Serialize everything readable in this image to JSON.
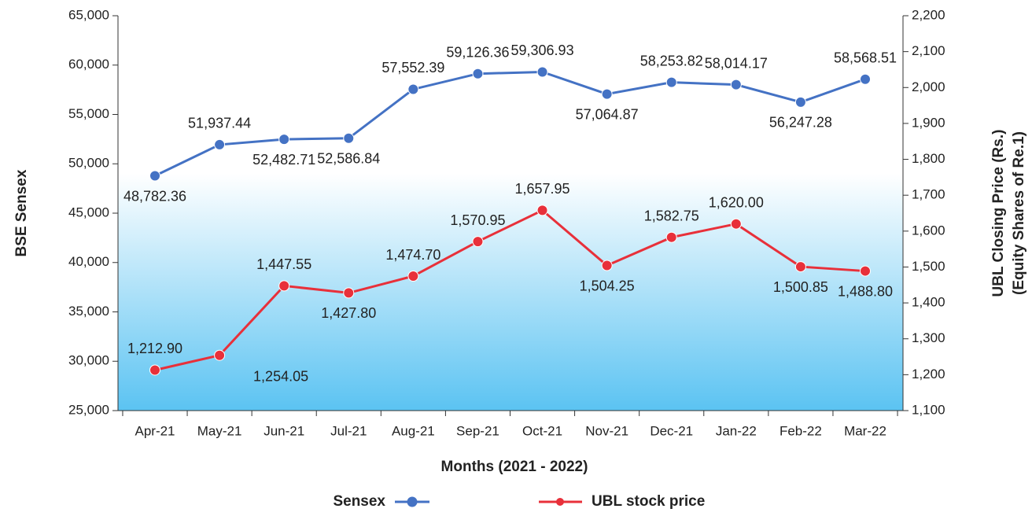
{
  "chart_data": {
    "type": "line",
    "x_label": "Months (2021 - 2022)",
    "y_label": "BSE Sensex",
    "y2_label": [
      "UBL Closing Price (Rs.)",
      "(Equity Shares of Re.1)"
    ],
    "categories": [
      "Apr-21",
      "May-21",
      "Jun-21",
      "Jul-21",
      "Aug-21",
      "Sep-21",
      "Oct-21",
      "Nov-21",
      "Dec-21",
      "Jan-22",
      "Feb-22",
      "Mar-22"
    ],
    "series": [
      {
        "name": "Sensex",
        "color": "#4472c4",
        "axis": "y",
        "values": [
          48782.36,
          51937.44,
          52482.71,
          52586.84,
          57552.39,
          59126.36,
          59306.93,
          57064.87,
          58253.82,
          58014.17,
          56247.28,
          58568.51
        ],
        "value_labels": [
          "48,782.36",
          "51,937.44",
          "52,482.71",
          "52,586.84",
          "57,552.39",
          "59,126.36",
          "59,306.93",
          "57,064.87",
          "58,253.82",
          "58,014.17",
          "56,247.28",
          "58,568.51"
        ]
      },
      {
        "name": "UBL stock price",
        "color": "#e8303a",
        "axis": "y2",
        "values": [
          1212.9,
          1254.05,
          1447.55,
          1427.8,
          1474.7,
          1570.95,
          1657.95,
          1504.25,
          1582.75,
          1620.0,
          1500.85,
          1488.8
        ],
        "value_labels": [
          "1,212.90",
          "1,254.05",
          "1,447.55",
          "1,427.80",
          "1,474.70",
          "1,570.95",
          "1,657.95",
          "1,504.25",
          "1,582.75",
          "1,620.00",
          "1,500.85",
          "1,488.80"
        ]
      }
    ],
    "ylim": [
      25000,
      65000
    ],
    "yticks": [
      {
        "value": 25000,
        "label": "25,000"
      },
      {
        "value": 30000,
        "label": "30,000"
      },
      {
        "value": 35000,
        "label": "35,000"
      },
      {
        "value": 40000,
        "label": "40,000"
      },
      {
        "value": 45000,
        "label": "45,000"
      },
      {
        "value": 50000,
        "label": "50,000"
      },
      {
        "value": 55000,
        "label": "55,000"
      },
      {
        "value": 60000,
        "label": "60,000"
      },
      {
        "value": 65000,
        "label": "65,000"
      }
    ],
    "y2lim": [
      1100,
      2200
    ],
    "y2ticks": [
      {
        "value": 1100,
        "label": "1,100"
      },
      {
        "value": 1200,
        "label": "1,200"
      },
      {
        "value": 1300,
        "label": "1,300"
      },
      {
        "value": 1400,
        "label": "1,400"
      },
      {
        "value": 1500,
        "label": "1,500"
      },
      {
        "value": 1600,
        "label": "1,600"
      },
      {
        "value": 1700,
        "label": "1,700"
      },
      {
        "value": 1800,
        "label": "1,800"
      },
      {
        "value": 1900,
        "label": "1,900"
      },
      {
        "value": 2000,
        "label": "2,000"
      },
      {
        "value": 2100,
        "label": "2,100"
      },
      {
        "value": 2200,
        "label": "2,200"
      }
    ],
    "grid": false
  }
}
